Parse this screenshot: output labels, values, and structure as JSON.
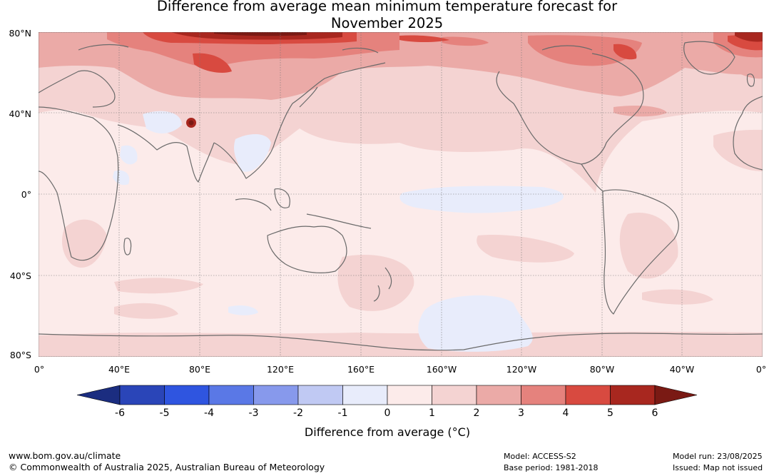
{
  "title": {
    "line1": "Difference from average mean minimum temperature forecast for",
    "line2": "November 2025"
  },
  "map": {
    "lat_labels": [
      "80°N",
      "40°N",
      "0°",
      "40°S",
      "80°S"
    ],
    "lon_labels": [
      "0°",
      "40°E",
      "80°E",
      "120°E",
      "160°E",
      "160°W",
      "120°W",
      "80°W",
      "40°W",
      "0°"
    ]
  },
  "colorbar": {
    "ticks": [
      "-6",
      "-5",
      "-4",
      "-3",
      "-2",
      "-1",
      "0",
      "1",
      "2",
      "3",
      "4",
      "5",
      "6"
    ],
    "label": "Difference from average (°C)",
    "colors": [
      "#1b2d80",
      "#2a45b8",
      "#2f55e0",
      "#5a78e6",
      "#8799ec",
      "#c0c9f3",
      "#e8ecfb",
      "#fcebea",
      "#f4d3d2",
      "#ebaaa7",
      "#e5827d",
      "#d84a40",
      "#a8271f",
      "#7a1a14"
    ]
  },
  "footer": {
    "website": "www.bom.gov.au/climate",
    "copyright": "© Commonwealth of Australia 2025, Australian Bureau of Meteorology",
    "model": "Model: ACCESS-S2",
    "base_period": "Base period: 1981-2018",
    "model_run": "Model run: 23/08/2025",
    "issued": "Issued: Map not issued"
  }
}
